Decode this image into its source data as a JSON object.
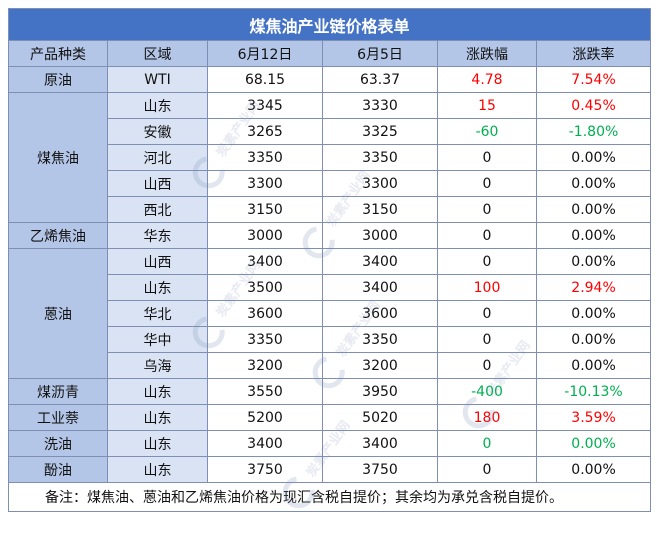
{
  "title": "煤焦油产业链价格表单",
  "headers": [
    "产品种类",
    "区域",
    "6月12日",
    "6月5日",
    "涨跌幅",
    "涨跌率"
  ],
  "groups": [
    {
      "category": "原油",
      "rows": [
        {
          "region": "WTI",
          "d1": "68.15",
          "d2": "63.37",
          "chg": "4.78",
          "rate": "7.54%",
          "chg_color": "red",
          "rate_color": "red"
        }
      ]
    },
    {
      "category": "煤焦油",
      "rows": [
        {
          "region": "山东",
          "d1": "3345",
          "d2": "3330",
          "chg": "15",
          "rate": "0.45%",
          "chg_color": "red",
          "rate_color": "red"
        },
        {
          "region": "安徽",
          "d1": "3265",
          "d2": "3325",
          "chg": "-60",
          "rate": "-1.80%",
          "chg_color": "green",
          "rate_color": "green"
        },
        {
          "region": "河北",
          "d1": "3350",
          "d2": "3350",
          "chg": "0",
          "rate": "0.00%",
          "chg_color": "",
          "rate_color": ""
        },
        {
          "region": "山西",
          "d1": "3300",
          "d2": "3300",
          "chg": "0",
          "rate": "0.00%",
          "chg_color": "",
          "rate_color": ""
        },
        {
          "region": "西北",
          "d1": "3150",
          "d2": "3150",
          "chg": "0",
          "rate": "0.00%",
          "chg_color": "",
          "rate_color": ""
        }
      ]
    },
    {
      "category": "乙烯焦油",
      "rows": [
        {
          "region": "华东",
          "d1": "3000",
          "d2": "3000",
          "chg": "0",
          "rate": "0.00%",
          "chg_color": "",
          "rate_color": ""
        }
      ]
    },
    {
      "category": "蒽油",
      "rows": [
        {
          "region": "山西",
          "d1": "3400",
          "d2": "3400",
          "chg": "0",
          "rate": "0.00%",
          "chg_color": "",
          "rate_color": ""
        },
        {
          "region": "山东",
          "d1": "3500",
          "d2": "3400",
          "chg": "100",
          "rate": "2.94%",
          "chg_color": "red",
          "rate_color": "red"
        },
        {
          "region": "华北",
          "d1": "3600",
          "d2": "3600",
          "chg": "0",
          "rate": "0.00%",
          "chg_color": "",
          "rate_color": ""
        },
        {
          "region": "华中",
          "d1": "3350",
          "d2": "3350",
          "chg": "0",
          "rate": "0.00%",
          "chg_color": "",
          "rate_color": ""
        },
        {
          "region": "乌海",
          "d1": "3200",
          "d2": "3200",
          "chg": "0",
          "rate": "0.00%",
          "chg_color": "",
          "rate_color": ""
        }
      ]
    },
    {
      "category": "煤沥青",
      "rows": [
        {
          "region": "山东",
          "d1": "3550",
          "d2": "3950",
          "chg": "-400",
          "rate": "-10.13%",
          "chg_color": "green",
          "rate_color": "green"
        }
      ]
    },
    {
      "category": "工业萘",
      "rows": [
        {
          "region": "山东",
          "d1": "5200",
          "d2": "5020",
          "chg": "180",
          "rate": "3.59%",
          "chg_color": "red",
          "rate_color": "red"
        }
      ]
    },
    {
      "category": "洗油",
      "rows": [
        {
          "region": "山东",
          "d1": "3400",
          "d2": "3400",
          "chg": "0",
          "rate": "0.00%",
          "chg_color": "green",
          "rate_color": "green"
        }
      ]
    },
    {
      "category": "酚油",
      "rows": [
        {
          "region": "山东",
          "d1": "3750",
          "d2": "3750",
          "chg": "0",
          "rate": "0.00%",
          "chg_color": "",
          "rate_color": ""
        }
      ]
    }
  ],
  "note": "备注：煤焦油、蒽油和乙烯焦油价格为现汇含税自提价；其余均为承兑含税自提价。",
  "watermark": "炭素产业网"
}
